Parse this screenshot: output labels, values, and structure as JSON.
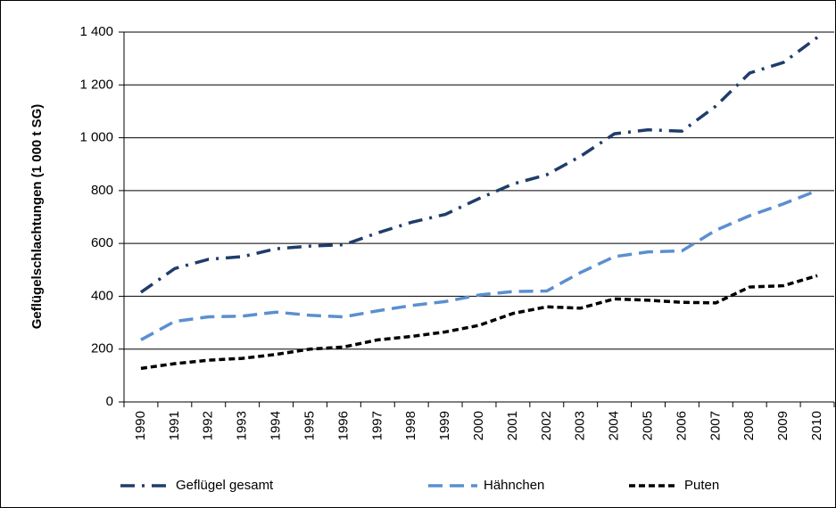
{
  "chart_data": {
    "type": "line",
    "y_label": "Geflügelschlachtungen (1 000 t SG)",
    "categories": [
      "1990",
      "1991",
      "1992",
      "1993",
      "1994",
      "1995",
      "1996",
      "1997",
      "1998",
      "1999",
      "2000",
      "2001",
      "2002",
      "2003",
      "2004",
      "2005",
      "2006",
      "2007",
      "2008",
      "2009",
      "2010"
    ],
    "series": [
      {
        "name": "Geflügel gesamt",
        "color": "#1f3d6b",
        "dash": "16 8 3 8",
        "values": [
          415,
          505,
          540,
          550,
          580,
          590,
          595,
          640,
          680,
          710,
          770,
          825,
          860,
          930,
          1015,
          1030,
          1025,
          1120,
          1245,
          1285,
          1380
        ]
      },
      {
        "name": "Hähnchen",
        "color": "#5b8fd0",
        "dash": "16 8",
        "values": [
          235,
          305,
          322,
          325,
          340,
          328,
          322,
          345,
          365,
          380,
          405,
          418,
          420,
          490,
          550,
          568,
          572,
          650,
          705,
          750,
          800
        ]
      },
      {
        "name": "Puten",
        "color": "#000000",
        "dash": "7 4",
        "values": [
          127,
          145,
          158,
          165,
          180,
          200,
          208,
          235,
          248,
          265,
          290,
          335,
          360,
          355,
          390,
          385,
          377,
          375,
          435,
          440,
          478
        ]
      }
    ],
    "ylim": [
      0,
      1400
    ],
    "yticks": [
      0,
      200,
      400,
      600,
      800,
      {
        "value": 1000,
        "label": "1 000"
      },
      {
        "value": 1200,
        "label": "1 200"
      },
      {
        "value": 1400,
        "label": "1 400"
      }
    ],
    "grid": true,
    "legend": "bottom"
  }
}
